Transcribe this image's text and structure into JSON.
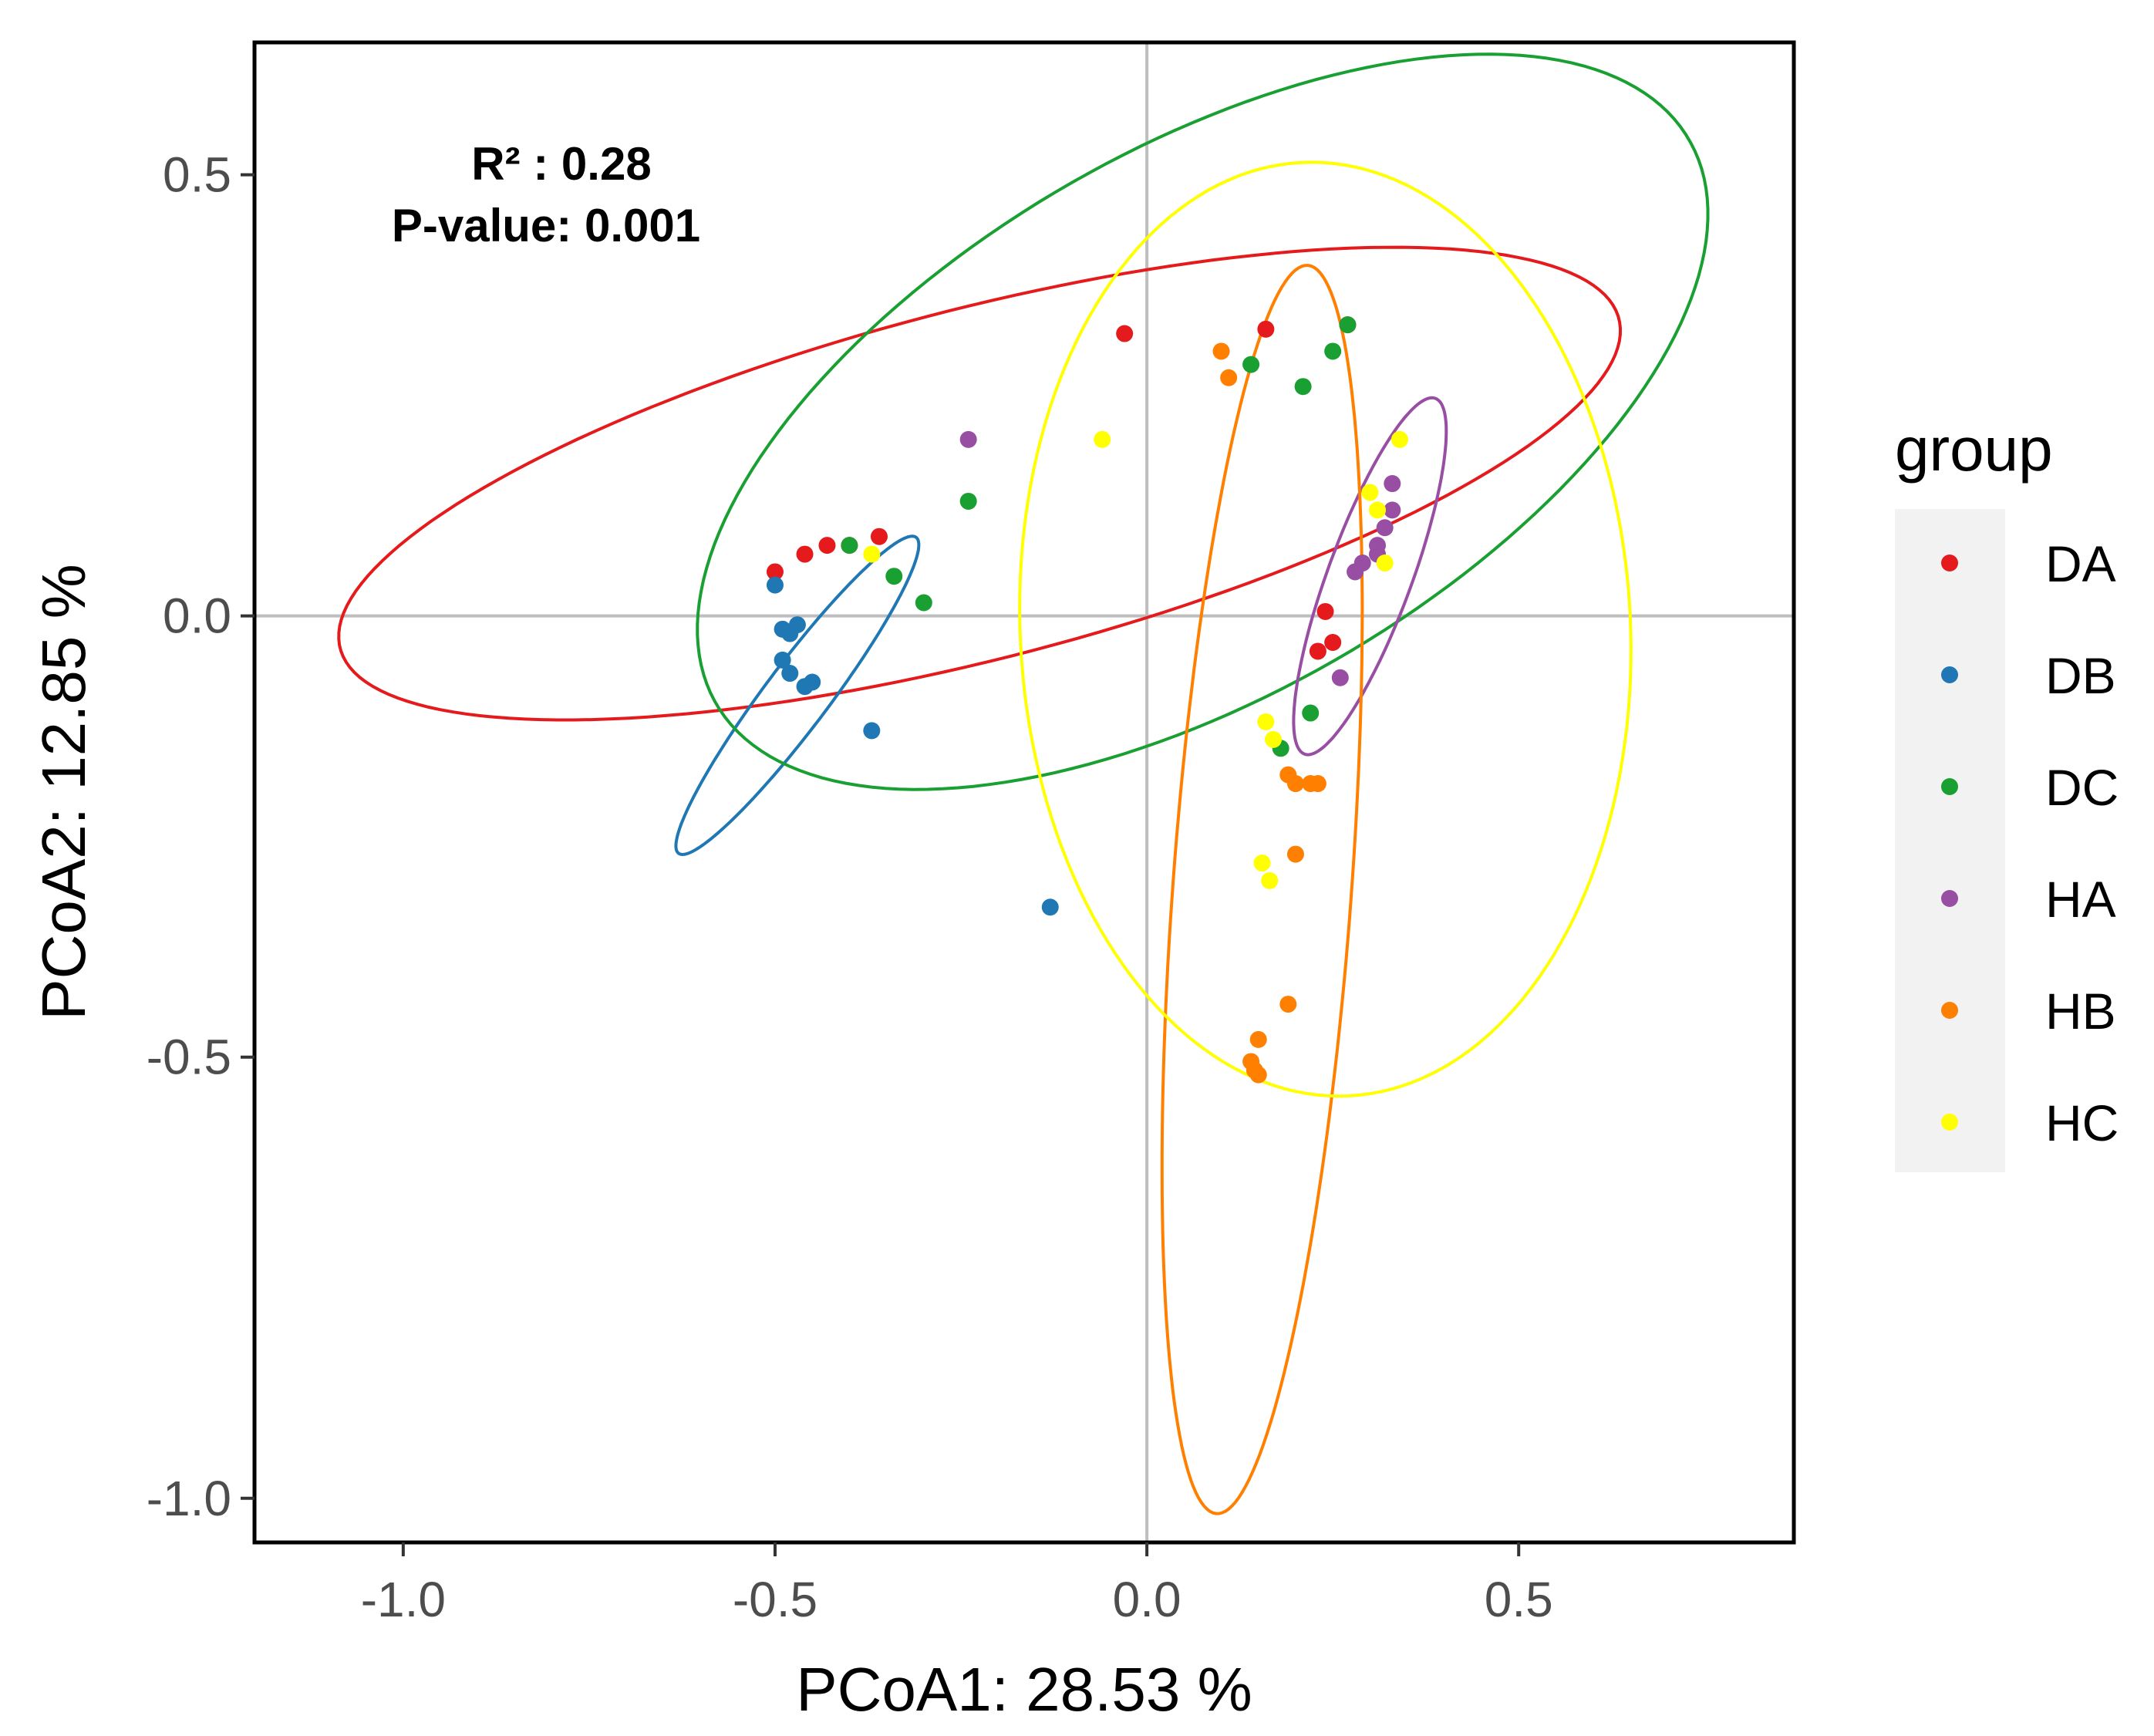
{
  "chart_data": {
    "type": "scatter",
    "title": "",
    "xlabel": "PCoA1: 28.53 %",
    "ylabel": "PCoA2: 12.85 %",
    "xlim": [
      -1.2,
      0.87
    ],
    "ylim": [
      -1.05,
      0.65
    ],
    "x_ticks": [
      {
        "value": -1.0,
        "label": "-1.0"
      },
      {
        "value": -0.5,
        "label": "-0.5"
      },
      {
        "value": 0.0,
        "label": "0.0"
      },
      {
        "value": 0.5,
        "label": "0.5"
      }
    ],
    "y_ticks": [
      {
        "value": 0.5,
        "label": "0.5"
      },
      {
        "value": 0.0,
        "label": "0.0"
      },
      {
        "value": -0.5,
        "label": "-0.5"
      },
      {
        "value": -1.0,
        "label": "-1.0"
      }
    ],
    "annotation": {
      "r2": "R² : 0.28",
      "p_value": "P-value: 0.001"
    },
    "legend": {
      "title": "group",
      "position": "right"
    },
    "series": [
      {
        "name": "DA",
        "color": "#E41A1C",
        "points": [
          [
            -0.5,
            0.05
          ],
          [
            -0.46,
            0.07
          ],
          [
            -0.43,
            0.08
          ],
          [
            -0.4,
            0.08
          ],
          [
            -0.36,
            0.09
          ],
          [
            -0.03,
            0.32
          ],
          [
            0.16,
            0.325
          ],
          [
            0.27,
            0.33
          ],
          [
            0.24,
            0.005
          ],
          [
            0.23,
            -0.04
          ],
          [
            0.25,
            -0.03
          ]
        ],
        "ellipse": {
          "cx": -0.225,
          "cy": 0.15,
          "rx": 0.88,
          "ry": 0.2,
          "angle": 12
        }
      },
      {
        "name": "DB",
        "color": "#1F78B4",
        "points": [
          [
            -0.5,
            0.035
          ],
          [
            -0.49,
            -0.015
          ],
          [
            -0.48,
            -0.02
          ],
          [
            -0.47,
            -0.01
          ],
          [
            -0.49,
            -0.05
          ],
          [
            -0.48,
            -0.065
          ],
          [
            -0.46,
            -0.08
          ],
          [
            -0.45,
            -0.075
          ],
          [
            -0.37,
            -0.13
          ],
          [
            -0.13,
            -0.33
          ]
        ],
        "ellipse": {
          "cx": -0.47,
          "cy": -0.09,
          "rx": 0.24,
          "ry": 0.04,
          "angle": 48
        }
      },
      {
        "name": "DC",
        "color": "#1AA032",
        "points": [
          [
            -0.4,
            0.08
          ],
          [
            -0.34,
            0.045
          ],
          [
            -0.3,
            0.015
          ],
          [
            -0.24,
            0.13
          ],
          [
            0.14,
            0.285
          ],
          [
            0.21,
            0.26
          ],
          [
            0.25,
            0.3
          ],
          [
            0.27,
            0.33
          ],
          [
            0.22,
            -0.11
          ],
          [
            0.18,
            -0.15
          ]
        ],
        "ellipse": {
          "cx": 0.075,
          "cy": 0.22,
          "rx": 0.73,
          "ry": 0.32,
          "angle": 24
        }
      },
      {
        "name": "HA",
        "color": "#984EA3",
        "points": [
          [
            -0.24,
            0.2
          ],
          [
            0.28,
            0.05
          ],
          [
            0.29,
            0.06
          ],
          [
            0.31,
            0.07
          ],
          [
            0.31,
            0.08
          ],
          [
            0.32,
            0.1
          ],
          [
            0.33,
            0.12
          ],
          [
            0.33,
            0.15
          ],
          [
            0.26,
            -0.07
          ]
        ],
        "ellipse": {
          "cx": 0.3,
          "cy": 0.045,
          "rx": 0.22,
          "ry": 0.055,
          "angle": 66
        }
      },
      {
        "name": "HB",
        "color": "#FF7F00",
        "points": [
          [
            0.1,
            0.3
          ],
          [
            0.11,
            0.27
          ],
          [
            0.19,
            -0.18
          ],
          [
            0.2,
            -0.19
          ],
          [
            0.22,
            -0.19
          ],
          [
            0.23,
            -0.19
          ],
          [
            0.2,
            -0.27
          ],
          [
            0.19,
            -0.44
          ],
          [
            0.15,
            -0.48
          ],
          [
            0.14,
            -0.505
          ],
          [
            0.145,
            -0.515
          ],
          [
            0.15,
            -0.52
          ]
        ],
        "ellipse": {
          "cx": 0.155,
          "cy": -0.31,
          "rx": 0.71,
          "ry": 0.12,
          "angle": 85
        }
      },
      {
        "name": "HC",
        "color": "#FFFF00",
        "points": [
          [
            -0.37,
            0.07
          ],
          [
            -0.06,
            0.2
          ],
          [
            0.34,
            0.2
          ],
          [
            0.3,
            0.14
          ],
          [
            0.31,
            0.12
          ],
          [
            0.32,
            0.06
          ],
          [
            0.16,
            -0.12
          ],
          [
            0.17,
            -0.14
          ],
          [
            0.155,
            -0.28
          ],
          [
            0.165,
            -0.3
          ]
        ],
        "ellipse": {
          "cx": 0.24,
          "cy": -0.015,
          "rx": 0.53,
          "ry": 0.41,
          "angle": 95
        }
      }
    ]
  }
}
